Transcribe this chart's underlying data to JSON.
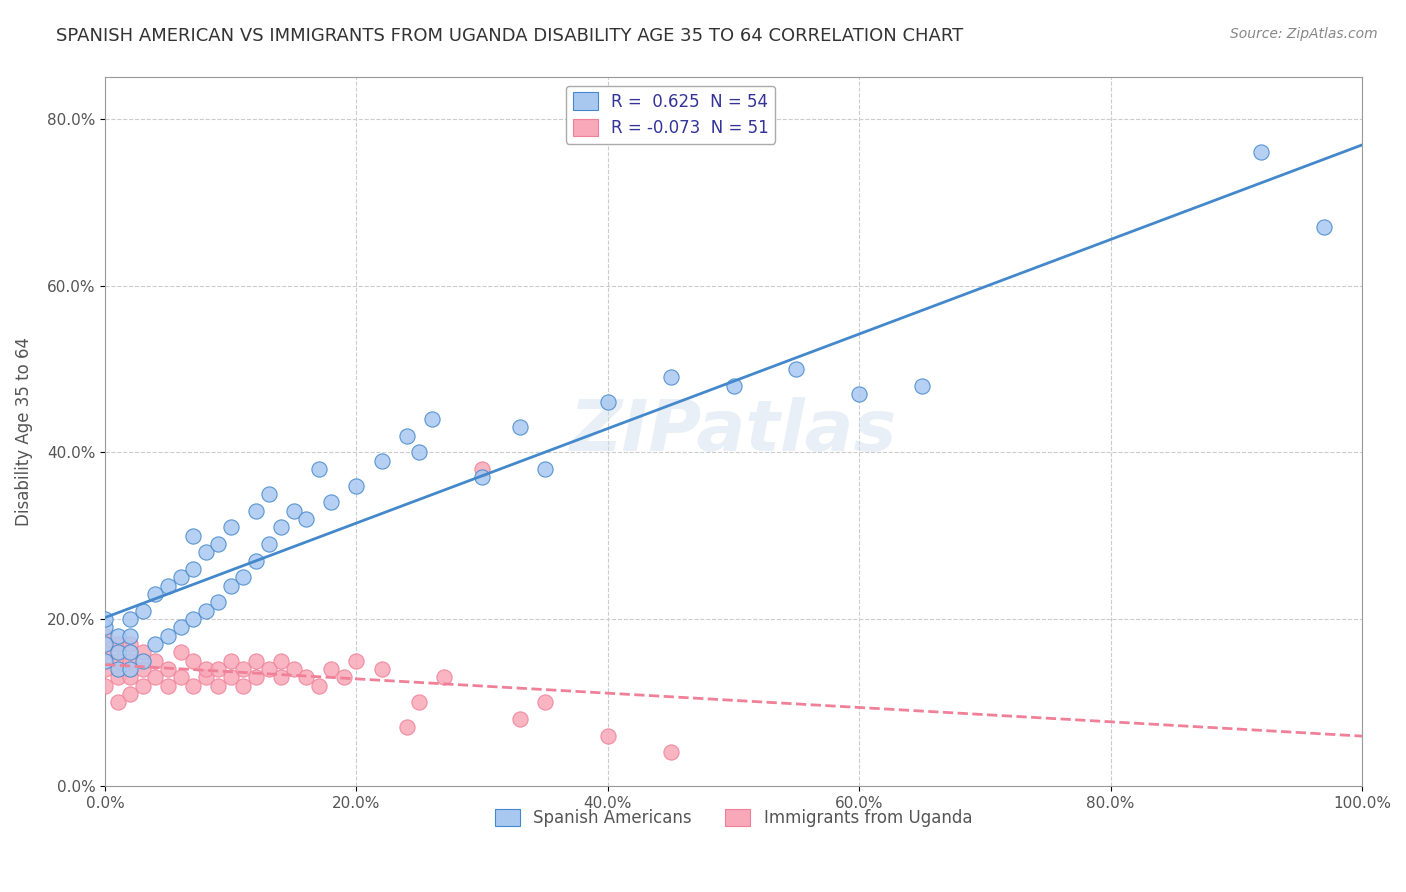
{
  "title": "SPANISH AMERICAN VS IMMIGRANTS FROM UGANDA DISABILITY AGE 35 TO 64 CORRELATION CHART",
  "source": "Source: ZipAtlas.com",
  "xlabel": "",
  "ylabel": "Disability Age 35 to 64",
  "legend_label1": "Spanish Americans",
  "legend_label2": "Immigrants from Uganda",
  "r1": 0.625,
  "n1": 54,
  "r2": -0.073,
  "n2": 51,
  "color1": "#a8c8f0",
  "color2": "#f8a8b8",
  "line_color1": "#4488cc",
  "line_color2": "#f08098",
  "watermark": "ZIPatlas",
  "xlim": [
    0.0,
    1.0
  ],
  "ylim": [
    0.0,
    0.85
  ],
  "blue_points_x": [
    0.0,
    0.0,
    0.0,
    0.0,
    0.01,
    0.01,
    0.01,
    0.02,
    0.02,
    0.02,
    0.02,
    0.03,
    0.03,
    0.04,
    0.04,
    0.05,
    0.05,
    0.06,
    0.06,
    0.07,
    0.07,
    0.07,
    0.08,
    0.08,
    0.09,
    0.09,
    0.1,
    0.1,
    0.11,
    0.12,
    0.12,
    0.13,
    0.13,
    0.14,
    0.15,
    0.16,
    0.17,
    0.18,
    0.2,
    0.22,
    0.24,
    0.25,
    0.26,
    0.3,
    0.33,
    0.35,
    0.4,
    0.45,
    0.5,
    0.55,
    0.6,
    0.65,
    0.92,
    0.97
  ],
  "blue_points_y": [
    0.15,
    0.17,
    0.19,
    0.2,
    0.14,
    0.16,
    0.18,
    0.14,
    0.16,
    0.18,
    0.2,
    0.15,
    0.21,
    0.17,
    0.23,
    0.18,
    0.24,
    0.19,
    0.25,
    0.2,
    0.26,
    0.3,
    0.21,
    0.28,
    0.22,
    0.29,
    0.24,
    0.31,
    0.25,
    0.27,
    0.33,
    0.29,
    0.35,
    0.31,
    0.33,
    0.32,
    0.38,
    0.34,
    0.36,
    0.39,
    0.42,
    0.4,
    0.44,
    0.37,
    0.43,
    0.38,
    0.46,
    0.49,
    0.48,
    0.5,
    0.47,
    0.48,
    0.76,
    0.67
  ],
  "pink_points_x": [
    0.0,
    0.0,
    0.0,
    0.0,
    0.01,
    0.01,
    0.01,
    0.01,
    0.02,
    0.02,
    0.02,
    0.02,
    0.03,
    0.03,
    0.03,
    0.04,
    0.04,
    0.05,
    0.05,
    0.06,
    0.06,
    0.07,
    0.07,
    0.08,
    0.08,
    0.09,
    0.09,
    0.1,
    0.1,
    0.11,
    0.11,
    0.12,
    0.12,
    0.13,
    0.14,
    0.14,
    0.15,
    0.16,
    0.17,
    0.18,
    0.19,
    0.2,
    0.22,
    0.24,
    0.25,
    0.27,
    0.3,
    0.33,
    0.35,
    0.4,
    0.45
  ],
  "pink_points_y": [
    0.12,
    0.14,
    0.16,
    0.18,
    0.1,
    0.13,
    0.15,
    0.17,
    0.11,
    0.13,
    0.15,
    0.17,
    0.12,
    0.14,
    0.16,
    0.13,
    0.15,
    0.12,
    0.14,
    0.13,
    0.16,
    0.12,
    0.15,
    0.13,
    0.14,
    0.12,
    0.14,
    0.13,
    0.15,
    0.12,
    0.14,
    0.13,
    0.15,
    0.14,
    0.13,
    0.15,
    0.14,
    0.13,
    0.12,
    0.14,
    0.13,
    0.15,
    0.14,
    0.07,
    0.1,
    0.13,
    0.38,
    0.08,
    0.1,
    0.06,
    0.04
  ],
  "xticks": [
    0.0,
    0.2,
    0.4,
    0.6,
    0.8,
    1.0
  ],
  "yticks": [
    0.0,
    0.2,
    0.4,
    0.6,
    0.8
  ],
  "xtick_labels": [
    "0.0%",
    "20.0%",
    "40.0%",
    "60.0%",
    "80.0%",
    "100.0%"
  ],
  "ytick_labels": [
    "0.0%",
    "20.0%",
    "40.0%",
    "60.0%",
    "80.0%"
  ],
  "title_color": "#333333",
  "axis_color": "#999999",
  "grid_color": "#cccccc"
}
